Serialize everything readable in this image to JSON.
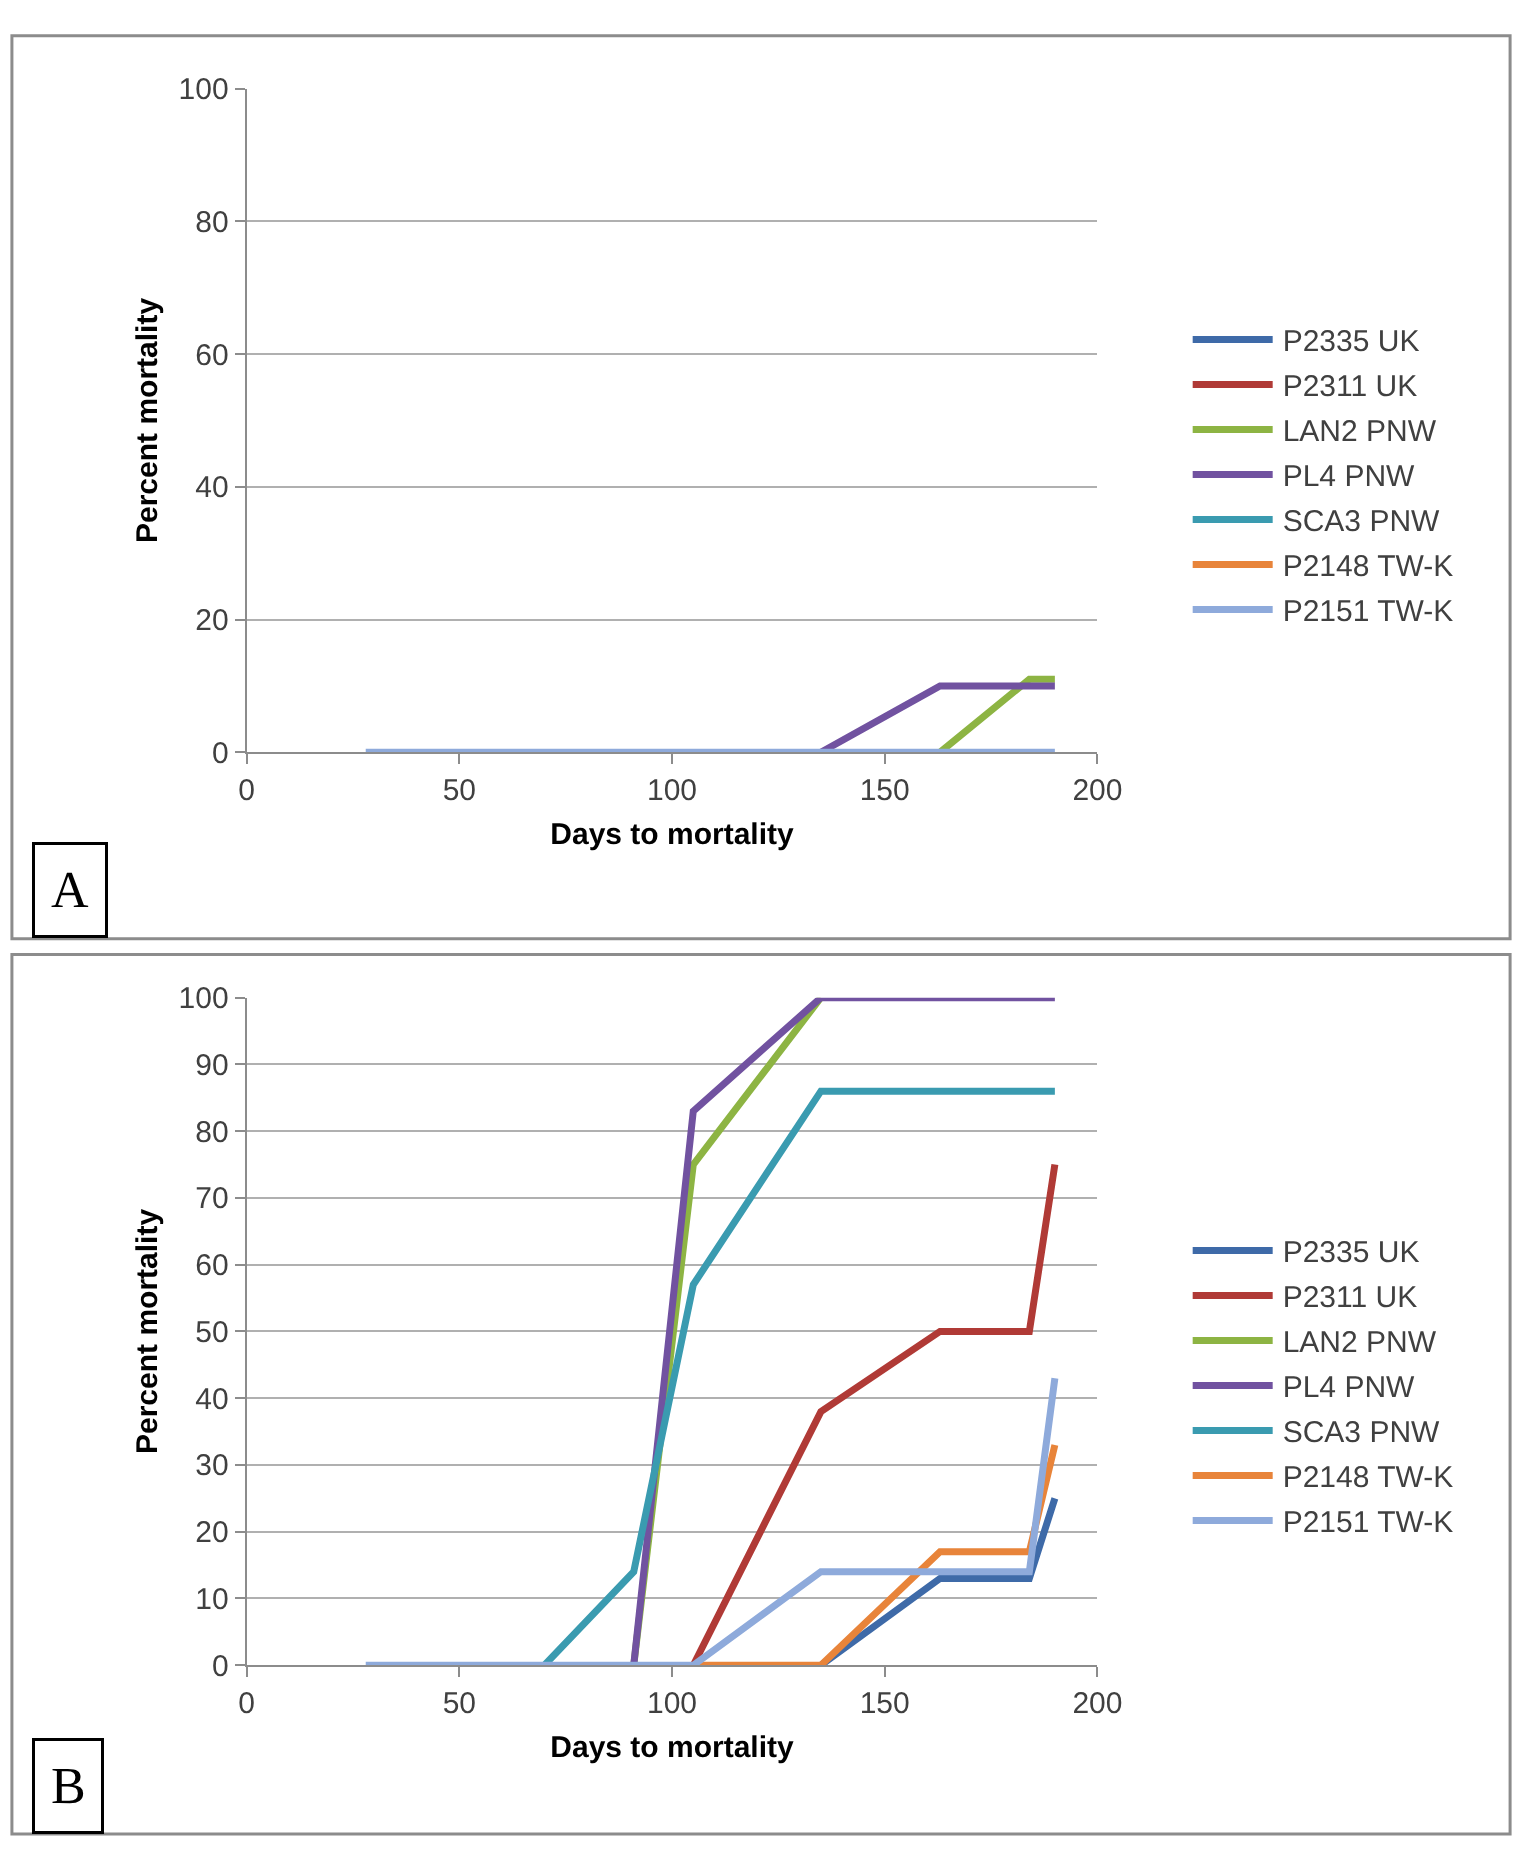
{
  "chart_data": [
    {
      "type": "line",
      "xlabel": "Days to mortality",
      "ylabel": "Percent mortality",
      "annotations": [
        "A"
      ],
      "x": [
        28,
        70,
        91,
        105,
        135,
        163,
        184,
        190
      ],
      "xlim": [
        0,
        200
      ],
      "xticks": [
        0,
        50,
        100,
        150,
        200
      ],
      "ylim": [
        0,
        100
      ],
      "yticks": [
        0,
        20,
        40,
        60,
        80,
        100
      ],
      "grid": "y",
      "legend": "right",
      "series": [
        {
          "name": "P2335 UK",
          "color": "#3e6aa8",
          "values": [
            null,
            null,
            null,
            null,
            null,
            null,
            null,
            null
          ]
        },
        {
          "name": "P2311 UK",
          "color": "#b03a36",
          "values": [
            null,
            null,
            null,
            null,
            null,
            null,
            null,
            null
          ]
        },
        {
          "name": "LAN2 PNW",
          "color": "#8db443",
          "values": [
            null,
            null,
            null,
            null,
            null,
            0,
            11,
            11
          ]
        },
        {
          "name": "PL4 PNW",
          "color": "#7152a0",
          "values": [
            null,
            null,
            null,
            null,
            0,
            10,
            10,
            10
          ]
        },
        {
          "name": "SCA3 PNW",
          "color": "#3a9bb0",
          "values": [
            null,
            null,
            null,
            null,
            null,
            null,
            null,
            null
          ]
        },
        {
          "name": "P2148 TW-K",
          "color": "#e8843a",
          "values": [
            null,
            null,
            null,
            null,
            null,
            null,
            null,
            null
          ]
        },
        {
          "name": "P2151 TW-K",
          "color": "#8eaadb",
          "values": [
            0,
            0,
            0,
            0,
            0,
            0,
            0,
            0
          ]
        }
      ]
    },
    {
      "type": "line",
      "xlabel": "Days to mortality",
      "ylabel": "Percent mortality",
      "annotations": [
        "B"
      ],
      "x": [
        28,
        70,
        91,
        105,
        135,
        163,
        184,
        190
      ],
      "xlim": [
        0,
        200
      ],
      "xticks": [
        0,
        50,
        100,
        150,
        200
      ],
      "ylim": [
        0,
        100
      ],
      "yticks": [
        0,
        10,
        20,
        30,
        40,
        50,
        60,
        70,
        80,
        90,
        100
      ],
      "grid": "y",
      "legend": "right",
      "series": [
        {
          "name": "P2335 UK",
          "color": "#3e6aa8",
          "values": [
            null,
            null,
            null,
            null,
            0,
            13,
            13,
            25
          ]
        },
        {
          "name": "P2311 UK",
          "color": "#b03a36",
          "values": [
            null,
            null,
            null,
            0,
            38,
            50,
            50,
            75
          ]
        },
        {
          "name": "LAN2 PNW",
          "color": "#8db443",
          "values": [
            null,
            null,
            0,
            75,
            100,
            null,
            null,
            null
          ]
        },
        {
          "name": "PL4 PNW",
          "color": "#7152a0",
          "values": [
            null,
            null,
            0,
            83,
            100,
            100,
            100,
            100
          ]
        },
        {
          "name": "SCA3 PNW",
          "color": "#3a9bb0",
          "values": [
            null,
            0,
            14,
            57,
            86,
            86,
            86,
            86
          ]
        },
        {
          "name": "P2148 TW-K",
          "color": "#e8843a",
          "values": [
            null,
            null,
            null,
            0,
            0,
            17,
            17,
            33
          ]
        },
        {
          "name": "P2151 TW-K",
          "color": "#8eaadb",
          "values": [
            0,
            0,
            0,
            0,
            14,
            14,
            14,
            43
          ]
        }
      ]
    }
  ]
}
